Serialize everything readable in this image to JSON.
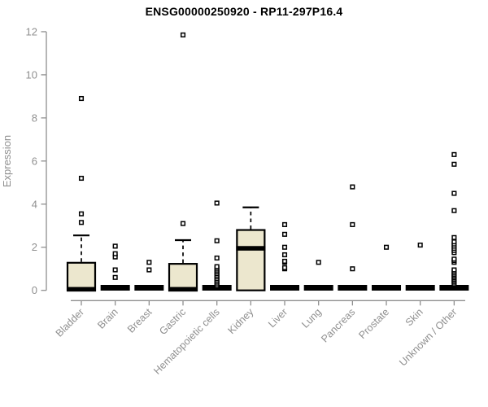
{
  "chart_data": {
    "type": "box",
    "title": "ENSG00000250920 - RP11-297P16.4",
    "ylabel": "Expression",
    "xlabel": "",
    "ylim": [
      0,
      12
    ],
    "yticks": [
      0,
      2,
      4,
      6,
      8,
      10,
      12
    ],
    "grid": false,
    "legend": "none",
    "xtick_rotation_deg": 45,
    "categories": [
      "Bladder",
      "Brain",
      "Breast",
      "Gastric",
      "Hematopoietic cells",
      "Kidney",
      "Liver",
      "Lung",
      "Pancreas",
      "Prostate",
      "Skin",
      "Unknown / Other"
    ],
    "series": [
      {
        "category": "Bladder",
        "low": 0,
        "q1": 0,
        "median": 0.05,
        "q3": 1.28,
        "high": 2.55,
        "outliers": [
          3.15,
          3.55,
          5.2,
          8.9
        ]
      },
      {
        "category": "Brain",
        "low": 0,
        "q1": 0,
        "median": 0,
        "q3": 0,
        "high": 0,
        "outliers": [
          0.6,
          0.95,
          1.55,
          1.7,
          2.05
        ]
      },
      {
        "category": "Breast",
        "low": 0,
        "q1": 0,
        "median": 0,
        "q3": 0,
        "high": 0,
        "outliers": [
          0.95,
          1.3
        ]
      },
      {
        "category": "Gastric",
        "low": 0,
        "q1": 0,
        "median": 0.05,
        "q3": 1.23,
        "high": 2.33,
        "outliers": [
          3.1,
          11.85
        ]
      },
      {
        "category": "Hematopoietic cells",
        "low": 0,
        "q1": 0,
        "median": 0,
        "q3": 0,
        "high": 0,
        "outliers": [
          0.22,
          0.3,
          0.38,
          0.46,
          0.54,
          0.62,
          0.7,
          0.78,
          0.86,
          0.94,
          1.02,
          1.1,
          1.5,
          2.3,
          4.05
        ]
      },
      {
        "category": "Kidney",
        "low": 0,
        "q1": 0,
        "median": 1.95,
        "q3": 2.8,
        "high": 3.85,
        "outliers": []
      },
      {
        "category": "Liver",
        "low": 0,
        "q1": 0,
        "median": 0,
        "q3": 0,
        "high": 0,
        "outliers": [
          1.0,
          1.05,
          1.3,
          1.35,
          1.65,
          2.0,
          2.6,
          3.05
        ]
      },
      {
        "category": "Lung",
        "low": 0,
        "q1": 0,
        "median": 0,
        "q3": 0,
        "high": 0,
        "outliers": [
          1.3
        ]
      },
      {
        "category": "Pancreas",
        "low": 0,
        "q1": 0,
        "median": 0,
        "q3": 0,
        "high": 0,
        "outliers": [
          1.0,
          3.05,
          4.8
        ]
      },
      {
        "category": "Prostate",
        "low": 0,
        "q1": 0,
        "median": 0,
        "q3": 0,
        "high": 0,
        "outliers": [
          2.0
        ]
      },
      {
        "category": "Skin",
        "low": 0,
        "q1": 0,
        "median": 0,
        "q3": 0,
        "high": 0,
        "outliers": [
          2.1
        ]
      },
      {
        "category": "Unknown / Other",
        "low": 0,
        "q1": 0,
        "median": 0,
        "q3": 0,
        "high": 0,
        "outliers": [
          0.3,
          0.38,
          0.45,
          0.52,
          0.59,
          0.66,
          0.73,
          0.8,
          0.88,
          0.95,
          1.3,
          1.38,
          1.45,
          1.75,
          1.85,
          1.95,
          2.05,
          2.15,
          2.25,
          2.45,
          3.7,
          4.5,
          5.85,
          6.3
        ]
      }
    ],
    "colors": {
      "box_fill": "#ECE7CE",
      "ink": "#000000",
      "axis": "#8F8F8F",
      "tick_label": "#8F8F8F",
      "background": "#FFFFFF"
    }
  }
}
